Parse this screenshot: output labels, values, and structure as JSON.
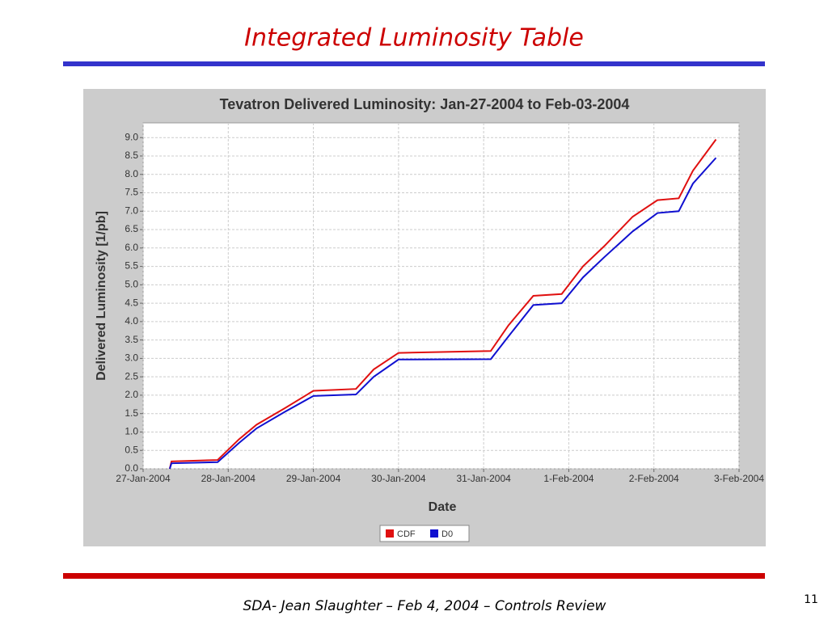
{
  "slide": {
    "title": "Integrated Luminosity Table",
    "footer": "SDA- Jean Slaughter – Feb 4, 2004 – Controls Review",
    "page_number": "11"
  },
  "chart_data": {
    "type": "line",
    "title": "Tevatron Delivered Luminosity:  Jan-27-2004 to Feb-03-2004",
    "x_label": "Date",
    "y_label": "Delivered Luminosity [1/pb]",
    "x": [
      "2004-01-27T07:30",
      "2004-01-27T08:00",
      "2004-01-27T21:00",
      "2004-01-28T03:00",
      "2004-01-28T08:00",
      "2004-01-28T16:00",
      "2004-01-29T00:00",
      "2004-01-29T12:00",
      "2004-01-29T17:00",
      "2004-01-30T00:00",
      "2004-01-31T02:00",
      "2004-01-31T07:00",
      "2004-01-31T14:00",
      "2004-01-31T22:00",
      "2004-02-01T04:00",
      "2004-02-01T10:00",
      "2004-02-01T18:00",
      "2004-02-02T01:00",
      "2004-02-02T07:00",
      "2004-02-02T11:00",
      "2004-02-02T17:30"
    ],
    "series": [
      {
        "name": "CDF",
        "color": "#e01010",
        "values": [
          0.0,
          0.2,
          0.24,
          0.8,
          1.2,
          1.65,
          2.12,
          2.17,
          2.7,
          3.15,
          3.2,
          3.9,
          4.7,
          4.75,
          5.5,
          6.05,
          6.85,
          7.3,
          7.35,
          8.1,
          8.95
        ]
      },
      {
        "name": "D0",
        "color": "#1010d0",
        "values": [
          0.0,
          0.15,
          0.18,
          0.7,
          1.1,
          1.55,
          1.98,
          2.02,
          2.5,
          2.97,
          2.98,
          3.6,
          4.45,
          4.5,
          5.2,
          5.75,
          6.45,
          6.95,
          7.0,
          7.75,
          8.45
        ]
      }
    ],
    "xlim": [
      "2004-01-27T00:00",
      "2004-02-03T00:00"
    ],
    "xticks": [
      {
        "value": "2004-01-27T00:00",
        "label": "27-Jan-2004"
      },
      {
        "value": "2004-01-28T00:00",
        "label": "28-Jan-2004"
      },
      {
        "value": "2004-01-29T00:00",
        "label": "29-Jan-2004"
      },
      {
        "value": "2004-01-30T00:00",
        "label": "30-Jan-2004"
      },
      {
        "value": "2004-01-31T00:00",
        "label": "31-Jan-2004"
      },
      {
        "value": "2004-02-01T00:00",
        "label": "1-Feb-2004"
      },
      {
        "value": "2004-02-02T00:00",
        "label": "2-Feb-2004"
      },
      {
        "value": "2004-02-03T00:00",
        "label": "3-Feb-2004"
      }
    ],
    "ylim": [
      0,
      9.4
    ],
    "yticks": [
      {
        "value": 0,
        "label": "0.0"
      },
      {
        "value": 0.5,
        "label": "0.5"
      },
      {
        "value": 1,
        "label": "1.0"
      },
      {
        "value": 1.5,
        "label": "1.5"
      },
      {
        "value": 2,
        "label": "2.0"
      },
      {
        "value": 2.5,
        "label": "2.5"
      },
      {
        "value": 3,
        "label": "3.0"
      },
      {
        "value": 3.5,
        "label": "3.5"
      },
      {
        "value": 4,
        "label": "4.0"
      },
      {
        "value": 4.5,
        "label": "4.5"
      },
      {
        "value": 5,
        "label": "5.0"
      },
      {
        "value": 5.5,
        "label": "5.5"
      },
      {
        "value": 6,
        "label": "6.0"
      },
      {
        "value": 6.5,
        "label": "6.5"
      },
      {
        "value": 7,
        "label": "7.0"
      },
      {
        "value": 7.5,
        "label": "7.5"
      },
      {
        "value": 8,
        "label": "8.0"
      },
      {
        "value": 8.5,
        "label": "8.5"
      },
      {
        "value": 9,
        "label": "9.0"
      }
    ],
    "grid": true,
    "legend": "bottom"
  }
}
